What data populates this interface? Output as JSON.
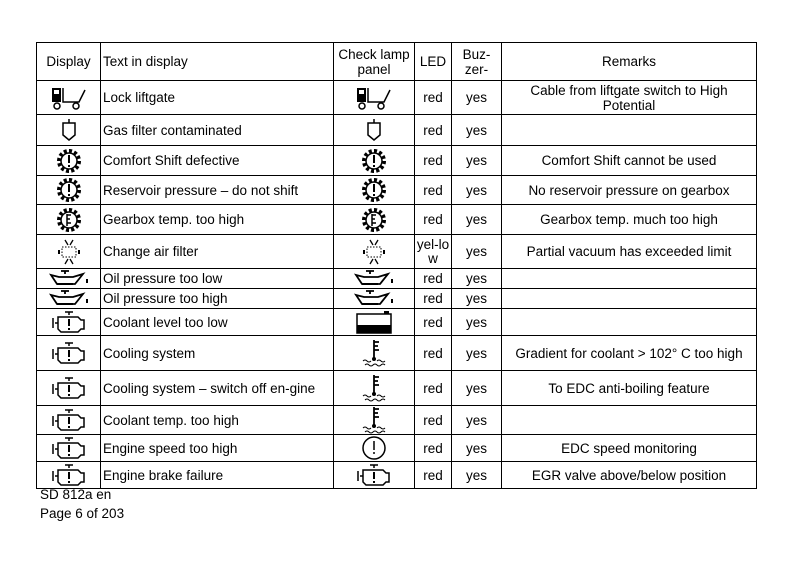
{
  "table": {
    "headers": [
      "Display",
      "Text in display",
      "Check lamp panel",
      "LED",
      "Buz-zer-",
      "Remarks"
    ],
    "rows": [
      {
        "display_icon": "truck-liftgate-icon",
        "text": "Lock liftgate",
        "lamp_icon": "truck-liftgate-icon",
        "led": "red",
        "buzzer": "yes",
        "remarks": "Cable from liftgate switch to High Potential"
      },
      {
        "display_icon": "gas-filter-icon",
        "text": "Gas filter contaminated",
        "lamp_icon": "gas-filter-icon",
        "led": "red",
        "buzzer": "yes",
        "remarks": ""
      },
      {
        "display_icon": "gear-exclamation-icon",
        "text": "Comfort Shift defective",
        "lamp_icon": "gear-exclamation-icon",
        "led": "red",
        "buzzer": "yes",
        "remarks": "Comfort Shift cannot be used"
      },
      {
        "display_icon": "gear-exclamation-icon",
        "text": "Reservoir pressure – do not shift",
        "lamp_icon": "gear-exclamation-icon",
        "led": "red",
        "buzzer": "yes",
        "remarks": "No reservoir pressure on gearbox"
      },
      {
        "display_icon": "gear-temperature-icon",
        "text": "Gearbox temp. too high",
        "lamp_icon": "gear-temperature-icon",
        "led": "red",
        "buzzer": "yes",
        "remarks": "Gearbox temp. much too high"
      },
      {
        "display_icon": "air-filter-icon",
        "text": "Change air filter",
        "lamp_icon": "air-filter-icon",
        "led": "yel-low",
        "buzzer": "yes",
        "remarks": "Partial vacuum has exceeded limit"
      },
      {
        "display_icon": "oil-can-icon",
        "text": "Oil pressure too low",
        "lamp_icon": "oil-can-icon",
        "led": "red",
        "buzzer": "yes",
        "remarks": ""
      },
      {
        "display_icon": "oil-can-icon",
        "text": "Oil pressure too high",
        "lamp_icon": "oil-can-icon",
        "led": "red",
        "buzzer": "yes",
        "remarks": ""
      },
      {
        "display_icon": "engine-warning-icon",
        "text": "Coolant level too low",
        "lamp_icon": "coolant-tank-icon",
        "led": "red",
        "buzzer": "yes",
        "remarks": ""
      },
      {
        "display_icon": "engine-warning-icon",
        "text": "Cooling system",
        "lamp_icon": "coolant-temperature-icon",
        "led": "red",
        "buzzer": "yes",
        "remarks": "Gradient for coolant > 102° C too high"
      },
      {
        "display_icon": "engine-warning-icon",
        "text": "Cooling system – switch off en-gine",
        "lamp_icon": "coolant-temperature-icon",
        "led": "red",
        "buzzer": "yes",
        "remarks": "To EDC anti-boiling feature"
      },
      {
        "display_icon": "engine-warning-icon",
        "text": "Coolant temp. too high",
        "lamp_icon": "coolant-temperature-icon",
        "led": "red",
        "buzzer": "yes",
        "remarks": ""
      },
      {
        "display_icon": "engine-warning-icon",
        "text": "Engine speed too high",
        "lamp_icon": "circle-exclamation-icon",
        "led": "red",
        "buzzer": "yes",
        "remarks": "EDC speed monitoring"
      },
      {
        "display_icon": "engine-warning-icon",
        "text": "Engine brake failure",
        "lamp_icon": "engine-warning-icon",
        "led": "red",
        "buzzer": "yes",
        "remarks": "EGR valve above/below position"
      }
    ]
  },
  "footer": {
    "doc_id": "SD 812a en",
    "page": "Page 6 of 203"
  }
}
